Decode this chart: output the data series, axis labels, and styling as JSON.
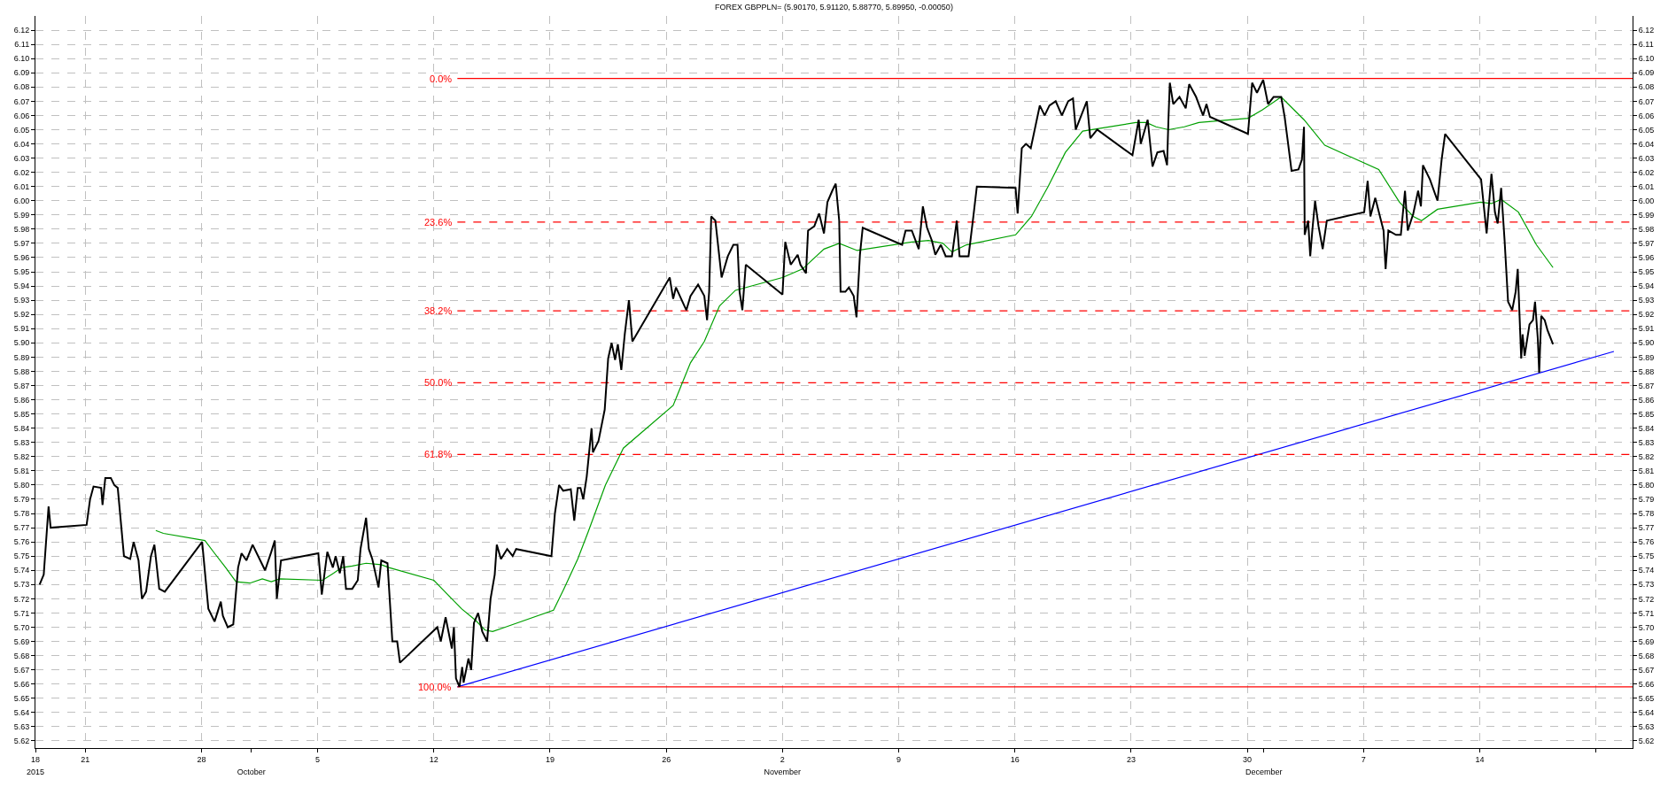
{
  "chart_data": {
    "type": "line",
    "title": "FOREX GBPPLN= (5.90170, 5.91120, 5.88770, 5.89950, -0.00050)",
    "xlim": [
      "2015-09-18",
      "2015-12-23T05:00"
    ],
    "xticks": [
      {
        "value": "2015-09-18",
        "label": "18"
      },
      {
        "value": "2015-09-21",
        "label": "21"
      },
      {
        "value": "2015-09-28",
        "label": "28"
      },
      {
        "value": "2015-10-05",
        "label": "5"
      },
      {
        "value": "2015-10-12",
        "label": "12"
      },
      {
        "value": "2015-10-19",
        "label": "19"
      },
      {
        "value": "2015-10-26",
        "label": "26"
      },
      {
        "value": "2015-11-02",
        "label": "2"
      },
      {
        "value": "2015-11-09",
        "label": "9"
      },
      {
        "value": "2015-11-16",
        "label": "16"
      },
      {
        "value": "2015-11-23",
        "label": "23"
      },
      {
        "value": "2015-11-30",
        "label": "30"
      },
      {
        "value": "2015-12-07",
        "label": "7"
      },
      {
        "value": "2015-12-14",
        "label": "14"
      },
      {
        "value": "2015-12-21",
        "label": null
      }
    ],
    "x2lim": [
      "2015-09-18",
      "2015-12-23T05:00"
    ],
    "x2ticks": [
      {
        "value": "2015-09-18",
        "label": "2015"
      },
      {
        "value": "2015-10-01",
        "label": "October"
      },
      {
        "value": "2015-11-02",
        "label": "November"
      },
      {
        "value": "2015-12-01",
        "label": "December"
      }
    ],
    "ylim": [
      5.615,
      6.13
    ],
    "yticks": [
      5.62,
      5.63,
      5.64,
      5.65,
      5.66,
      5.67,
      5.68,
      5.69,
      {
        "value": 5.7,
        "label": "5.70"
      },
      5.71,
      5.72,
      5.73,
      5.74,
      5.75,
      5.76,
      5.77,
      5.78,
      5.79,
      {
        "value": 5.8,
        "label": "5.80"
      },
      5.81,
      5.82,
      5.83,
      5.84,
      5.85,
      5.86,
      5.87,
      5.88,
      5.89,
      {
        "value": 5.9,
        "label": "5.90"
      },
      5.91,
      5.92,
      5.93,
      5.94,
      5.95,
      5.96,
      5.97,
      5.98,
      5.99,
      {
        "value": 6.0,
        "label": "6.00"
      },
      6.01,
      6.02,
      6.03,
      6.04,
      6.05,
      6.06,
      6.07,
      6.08,
      6.09,
      {
        "value": 6.1,
        "label": "6.10"
      },
      6.11,
      6.12
    ],
    "y2lim": [
      5.615,
      6.13
    ],
    "y2ticks": [
      5.62,
      5.63,
      5.64,
      5.65,
      5.66,
      5.67,
      5.68,
      5.69,
      {
        "value": 5.7,
        "label": "5.70"
      },
      5.71,
      5.72,
      5.73,
      5.74,
      5.75,
      5.76,
      5.77,
      5.78,
      5.79,
      {
        "value": 5.8,
        "label": "5.80"
      },
      5.81,
      5.82,
      5.83,
      5.84,
      5.85,
      5.86,
      5.87,
      5.88,
      5.89,
      {
        "value": 5.9,
        "label": "5.90"
      },
      5.91,
      5.92,
      5.93,
      5.94,
      5.95,
      5.96,
      5.97,
      5.98,
      5.99,
      {
        "value": 6.0,
        "label": "6.00"
      },
      6.01,
      6.02,
      6.03,
      6.04,
      6.05,
      6.06,
      6.07,
      6.08,
      6.09,
      {
        "value": 6.1,
        "label": "6.10"
      },
      6.11,
      6.12
    ],
    "grid": true,
    "legend": false,
    "series": [
      {
        "color": "#0000ff",
        "line_style": "solid",
        "x": [
          "2015-10-13T10:00",
          "2015-12-22T02:00"
        ],
        "values": [
          5.658,
          5.894
        ]
      },
      {
        "name": "0.0%",
        "color": "#ff0000",
        "line_style": "solid",
        "x": [
          "2015-10-13T10:00",
          "2015-12-23T05:00"
        ],
        "values": [
          6.086,
          6.086
        ]
      },
      {
        "name": "23.6%",
        "color": "#ff0000",
        "line_style": "dashed",
        "x": [
          "2015-10-13T10:00",
          "2015-12-23T05:00"
        ],
        "values": [
          5.985,
          5.985
        ]
      },
      {
        "name": "38.2%",
        "color": "#ff0000",
        "line_style": "dashed",
        "x": [
          "2015-10-13T10:00",
          "2015-12-23T05:00"
        ],
        "values": [
          5.9225,
          5.9225
        ]
      },
      {
        "name": "50.0%",
        "color": "#ff0000",
        "line_style": "dashed",
        "x": [
          "2015-10-13T10:00",
          "2015-12-23T05:00"
        ],
        "values": [
          5.872,
          5.872
        ]
      },
      {
        "name": "61.8%",
        "color": "#ff0000",
        "line_style": "dashed",
        "x": [
          "2015-10-13T10:00",
          "2015-12-23T05:00"
        ],
        "values": [
          5.8215,
          5.8215
        ]
      },
      {
        "name": "100.0%",
        "color": "#ff0000",
        "line_style": "solid",
        "x": [
          "2015-10-13T10:00",
          "2015-12-23T05:00"
        ],
        "values": [
          5.658,
          5.658
        ]
      },
      {
        "color": "#00a000",
        "line_style": "solid",
        "x": [
          "2015-09-25T06:00",
          "2015-09-25T17:00",
          "2015-09-28T05:00",
          "2015-09-28T19:00",
          "2015-09-29T11:00",
          "2015-09-30T02:00",
          "2015-09-30T22:00",
          "2015-10-01T16:00",
          "2015-10-02T05:00",
          "2015-10-02T17:00",
          "2015-10-05T07:00",
          "2015-10-05T23:00",
          "2015-10-06T11:00",
          "2015-10-07T02:00",
          "2015-10-07T22:00",
          "2015-10-08T20:00",
          "2015-10-09T07:00",
          "2015-10-12T00:00",
          "2015-10-12T20:00",
          "2015-10-13T16:00",
          "2015-10-14T12:00",
          "2015-10-15T02:00",
          "2015-10-15T13:00",
          "2015-10-16T07:00",
          "2015-10-19T05:00",
          "2015-10-19T20:00",
          "2015-10-20T16:00",
          "2015-10-21T07:00",
          "2015-10-22T08:00",
          "2015-10-23T10:00",
          "2015-10-26T10:00",
          "2015-10-27T11:00",
          "2015-10-28T07:00",
          "2015-10-29T05:00",
          "2015-10-30T04:00",
          "2015-11-02T00:00",
          "2015-11-03T05:00",
          "2015-11-04T12:00",
          "2015-11-05T10:00",
          "2015-11-06T12:00",
          "2015-11-09T19:00",
          "2015-11-10T19:00",
          "2015-11-11T16:00",
          "2015-11-12T05:00",
          "2015-11-13T02:00",
          "2015-11-16T01:00",
          "2015-11-17T00:00",
          "2015-11-18T00:00",
          "2015-11-19T01:00",
          "2015-11-20T02:00",
          "2015-11-23T07:00",
          "2015-11-23T22:00",
          "2015-11-24T12:00",
          "2015-11-25T06:00",
          "2015-11-26T05:00",
          "2015-11-27T02:00",
          "2015-11-30T01:00",
          "2015-11-30T22:00",
          "2015-12-02T01:00",
          "2015-12-03T10:00",
          "2015-12-04T16:00",
          "2015-12-07T22:00",
          "2015-12-09T04:00",
          "2015-12-10T00:00",
          "2015-12-10T12:00",
          "2015-12-11T11:00",
          "2015-12-14T01:00",
          "2015-12-14T17:00",
          "2015-12-15T07:00",
          "2015-12-16T08:00",
          "2015-12-17T10:00",
          "2015-12-18T10:00"
        ],
        "values": [
          5.768,
          5.766,
          5.761,
          5.752,
          5.742,
          5.732,
          5.731,
          5.734,
          5.732,
          5.734,
          5.733,
          5.738,
          5.742,
          5.743,
          5.745,
          5.744,
          5.742,
          5.733,
          5.723,
          5.713,
          5.705,
          5.698,
          5.697,
          5.7,
          5.712,
          5.727,
          5.748,
          5.767,
          5.8,
          5.826,
          5.856,
          5.886,
          5.901,
          5.926,
          5.937,
          5.946,
          5.952,
          5.966,
          5.97,
          5.965,
          5.971,
          5.972,
          5.97,
          5.964,
          5.969,
          5.976,
          5.989,
          6.01,
          6.034,
          6.049,
          6.055,
          6.055,
          6.052,
          6.05,
          6.052,
          6.055,
          6.058,
          6.064,
          6.073,
          6.057,
          6.039,
          6.022,
          5.999,
          5.989,
          5.986,
          5.994,
          5.999,
          5.998,
          6.001,
          5.992,
          5.969,
          5.953
        ]
      },
      {
        "color": "#000000",
        "line_style": "solid",
        "x": [
          "2015-09-18T06:00",
          "2015-09-18T12:00",
          "2015-09-18T19:00",
          "2015-09-18T22:00",
          "2015-09-21T02:00",
          "2015-09-21T07:00",
          "2015-09-21T12:00",
          "2015-09-21T23:00",
          "2015-09-22T01:00",
          "2015-09-22T05:00",
          "2015-09-22T13:00",
          "2015-09-22T18:00",
          "2015-09-22T23:00",
          "2015-09-23T08:00",
          "2015-09-23T17:00",
          "2015-09-23T22:00",
          "2015-09-24T05:00",
          "2015-09-24T10:00",
          "2015-09-24T16:00",
          "2015-09-24T23:00",
          "2015-09-25T04:00",
          "2015-09-25T11:00",
          "2015-09-25T19:00",
          "2015-09-28T01:00",
          "2015-09-28T10:00",
          "2015-09-28T19:00",
          "2015-09-29T04:00",
          "2015-09-29T07:00",
          "2015-09-29T14:00",
          "2015-09-29T22:00",
          "2015-09-30T05:00",
          "2015-09-30T10:00",
          "2015-09-30T17:00",
          "2015-10-01T02:00",
          "2015-10-01T10:00",
          "2015-10-01T20:00",
          "2015-10-02T05:00",
          "2015-10-02T10:00",
          "2015-10-02T13:00",
          "2015-10-02T19:00",
          "2015-10-05T01:00",
          "2015-10-05T06:00",
          "2015-10-05T14:00",
          "2015-10-05T22:00",
          "2015-10-06T02:00",
          "2015-10-06T08:00",
          "2015-10-06T13:00",
          "2015-10-06T17:00",
          "2015-10-07T02:00",
          "2015-10-07T10:00",
          "2015-10-07T14:00",
          "2015-10-07T22:00",
          "2015-10-08T02:00",
          "2015-10-08T07:00",
          "2015-10-08T16:00",
          "2015-10-08T20:00",
          "2015-10-09T05:00",
          "2015-10-09T12:00",
          "2015-10-09T19:00",
          "2015-10-09T23:00",
          "2015-10-12T05:00",
          "2015-10-12T10:00",
          "2015-10-12T17:00",
          "2015-10-13T02:00",
          "2015-10-13T05:00",
          "2015-10-13T08:00",
          "2015-10-13T13:00",
          "2015-10-13T17:00",
          "2015-10-13T19:00",
          "2015-10-14T02:00",
          "2015-10-14T06:00",
          "2015-10-14T10:00",
          "2015-10-14T16:00",
          "2015-10-14T22:00",
          "2015-10-15T05:00",
          "2015-10-15T10:00",
          "2015-10-15T16:00",
          "2015-10-15T19:00",
          "2015-10-16T01:00",
          "2015-10-16T10:00",
          "2015-10-16T18:00",
          "2015-10-16T23:00",
          "2015-10-19T02:00",
          "2015-10-19T07:00",
          "2015-10-19T13:00",
          "2015-10-19T19:00",
          "2015-10-20T06:00",
          "2015-10-20T11:00",
          "2015-10-20T16:00",
          "2015-10-20T20:00",
          "2015-10-21T00:00",
          "2015-10-21T05:00",
          "2015-10-21T12:00",
          "2015-10-21T14:00",
          "2015-10-21T22:00",
          "2015-10-22T07:00",
          "2015-10-22T12:00",
          "2015-10-22T17:00",
          "2015-10-22T22:00",
          "2015-10-23T02:00",
          "2015-10-23T07:00",
          "2015-10-23T12:00",
          "2015-10-23T18:00",
          "2015-10-23T23:00",
          "2015-10-26T05:00",
          "2015-10-26T10:00",
          "2015-10-26T14:00",
          "2015-10-27T05:00",
          "2015-10-27T11:00",
          "2015-10-27T22:00",
          "2015-10-28T07:00",
          "2015-10-28T11:00",
          "2015-10-28T14:00",
          "2015-10-28T17:00",
          "2015-10-28T23:00",
          "2015-10-29T08:00",
          "2015-10-29T17:00",
          "2015-10-30T01:00",
          "2015-10-30T07:00",
          "2015-10-30T10:00",
          "2015-10-30T14:00",
          "2015-10-30T19:00",
          "2015-11-02T00:00",
          "2015-11-02T04:00",
          "2015-11-02T12:00",
          "2015-11-02T22:00",
          "2015-11-03T02:00",
          "2015-11-03T10:00",
          "2015-11-03T13:00",
          "2015-11-03T22:00",
          "2015-11-04T05:00",
          "2015-11-04T12:00",
          "2015-11-04T17:00",
          "2015-11-05T00:00",
          "2015-11-05T05:00",
          "2015-11-05T10:00",
          "2015-11-05T12:00",
          "2015-11-05T19:00",
          "2015-11-06T00:00",
          "2015-11-06T07:00",
          "2015-11-06T11:00",
          "2015-11-06T16:00",
          "2015-11-06T20:00",
          "2015-11-09T05:00",
          "2015-11-09T10:00",
          "2015-11-09T19:00",
          "2015-11-10T05:00",
          "2015-11-10T11:00",
          "2015-11-10T17:00",
          "2015-11-11T00:00",
          "2015-11-11T05:00",
          "2015-11-11T13:00",
          "2015-11-11T20:00",
          "2015-11-12T05:00",
          "2015-11-12T12:00",
          "2015-11-12T16:00",
          "2015-11-13T05:00",
          "2015-11-13T12:00",
          "2015-11-13T17:00",
          "2015-11-16T01:00",
          "2015-11-16T04:00",
          "2015-11-16T10:00",
          "2015-11-16T16:00",
          "2015-11-16T23:00",
          "2015-11-17T12:00",
          "2015-11-17T19:00",
          "2015-11-18T02:00",
          "2015-11-18T11:00",
          "2015-11-18T20:00",
          "2015-11-19T05:00",
          "2015-11-19T12:00",
          "2015-11-19T16:00",
          "2015-11-20T00:00",
          "2015-11-20T08:00",
          "2015-11-20T13:00",
          "2015-11-20T23:00",
          "2015-11-23T02:00",
          "2015-11-23T11:00",
          "2015-11-23T14:00",
          "2015-11-24T00:00",
          "2015-11-24T07:00",
          "2015-11-24T14:00",
          "2015-11-24T23:00",
          "2015-11-25T04:00",
          "2015-11-25T06:00",
          "2015-11-25T08:00",
          "2015-11-25T13:00",
          "2015-11-25T22:00",
          "2015-11-26T07:00",
          "2015-11-26T12:00",
          "2015-11-26T22:00",
          "2015-11-27T08:00",
          "2015-11-27T13:00",
          "2015-11-27T18:00",
          "2015-11-30T01:00",
          "2015-11-30T07:00",
          "2015-11-30T14:00",
          "2015-11-30T23:00",
          "2015-12-01T06:00",
          "2015-12-01T14:00",
          "2015-12-02T01:00",
          "2015-12-02T06:00",
          "2015-12-02T10:00",
          "2015-12-02T16:00",
          "2015-12-03T02:00",
          "2015-12-03T07:00",
          "2015-12-03T10:00",
          "2015-12-03T11:00",
          "2015-12-03T16:00",
          "2015-12-03T19:00",
          "2015-12-03T22:00",
          "2015-12-04T02:00",
          "2015-12-04T07:00",
          "2015-12-04T13:00",
          "2015-12-04T19:00",
          "2015-12-07T01:00",
          "2015-12-07T06:00",
          "2015-12-07T10:00",
          "2015-12-07T17:00",
          "2015-12-08T05:00",
          "2015-12-08T08:00",
          "2015-12-08T12:00",
          "2015-12-08T23:00",
          "2015-12-09T06:00",
          "2015-12-09T12:00",
          "2015-12-09T16:00",
          "2015-12-10T00:00",
          "2015-12-10T07:00",
          "2015-12-10T11:00",
          "2015-12-10T14:00",
          "2015-12-11T00:00",
          "2015-12-11T11:00",
          "2015-12-11T17:00",
          "2015-12-11T22:00",
          "2015-12-14T02:00",
          "2015-12-14T10:00",
          "2015-12-14T17:00",
          "2015-12-14T22:00",
          "2015-12-15T02:00",
          "2015-12-15T07:00",
          "2015-12-15T12:00",
          "2015-12-15T17:00",
          "2015-12-15T23:00",
          "2015-12-16T04:00",
          "2015-12-16T07:00",
          "2015-12-16T12:00",
          "2015-12-16T14:00",
          "2015-12-16T17:00",
          "2015-12-17T00:00",
          "2015-12-17T05:00",
          "2015-12-17T08:00",
          "2015-12-17T12:00",
          "2015-12-17T14:00",
          "2015-12-17T17:00",
          "2015-12-17T22:00",
          "2015-12-18T02:00",
          "2015-12-18T10:00"
        ],
        "values": [
          5.73,
          5.737,
          5.785,
          5.77,
          5.772,
          5.79,
          5.799,
          5.798,
          5.786,
          5.805,
          5.805,
          5.8,
          5.798,
          5.75,
          5.748,
          5.76,
          5.747,
          5.72,
          5.725,
          5.75,
          5.758,
          5.727,
          5.725,
          5.76,
          5.713,
          5.704,
          5.718,
          5.708,
          5.7,
          5.702,
          5.742,
          5.752,
          5.747,
          5.758,
          5.75,
          5.74,
          5.753,
          5.761,
          5.72,
          5.747,
          5.752,
          5.723,
          5.753,
          5.742,
          5.75,
          5.738,
          5.75,
          5.727,
          5.727,
          5.733,
          5.755,
          5.777,
          5.755,
          5.748,
          5.728,
          5.747,
          5.745,
          5.69,
          5.69,
          5.675,
          5.7,
          5.69,
          5.707,
          5.685,
          5.7,
          5.664,
          5.658,
          5.672,
          5.661,
          5.678,
          5.67,
          5.703,
          5.71,
          5.697,
          5.69,
          5.72,
          5.737,
          5.758,
          5.748,
          5.755,
          5.75,
          5.755,
          5.75,
          5.78,
          5.8,
          5.796,
          5.797,
          5.775,
          5.798,
          5.798,
          5.79,
          5.806,
          5.84,
          5.823,
          5.831,
          5.853,
          5.889,
          5.9,
          5.888,
          5.899,
          5.881,
          5.906,
          5.93,
          5.901,
          5.946,
          5.931,
          5.939,
          5.923,
          5.933,
          5.941,
          5.933,
          5.916,
          5.936,
          5.989,
          5.986,
          5.946,
          5.961,
          5.969,
          5.969,
          5.936,
          5.923,
          5.955,
          5.934,
          5.971,
          5.955,
          5.962,
          5.955,
          5.949,
          5.979,
          5.982,
          5.991,
          5.977,
          5.999,
          6.007,
          6.012,
          5.986,
          5.936,
          5.936,
          5.939,
          5.933,
          5.918,
          5.962,
          5.981,
          5.969,
          5.979,
          5.979,
          5.966,
          5.996,
          5.981,
          5.972,
          5.962,
          5.969,
          5.961,
          5.961,
          5.986,
          5.961,
          5.961,
          5.989,
          6.01,
          6.009,
          5.991,
          6.037,
          6.04,
          6.037,
          6.067,
          6.06,
          6.067,
          6.07,
          6.06,
          6.07,
          6.072,
          6.05,
          6.06,
          6.07,
          6.044,
          6.05,
          6.032,
          6.057,
          6.04,
          6.057,
          6.024,
          6.034,
          6.035,
          6.025,
          6.057,
          6.083,
          6.068,
          6.073,
          6.065,
          6.082,
          6.073,
          6.06,
          6.068,
          6.059,
          6.047,
          6.083,
          6.076,
          6.085,
          6.068,
          6.073,
          6.073,
          6.059,
          6.044,
          6.021,
          6.022,
          6.029,
          6.052,
          5.976,
          5.986,
          5.961,
          5.979,
          6.0,
          5.982,
          5.966,
          5.986,
          5.992,
          6.014,
          5.989,
          6.002,
          5.979,
          5.952,
          5.979,
          5.976,
          5.976,
          6.007,
          5.979,
          5.991,
          6.007,
          5.996,
          6.025,
          6.015,
          6.0,
          6.029,
          6.047,
          6.015,
          5.977,
          6.019,
          5.992,
          5.984,
          6.009,
          5.972,
          5.929,
          5.923,
          5.936,
          5.952,
          5.889,
          5.906,
          5.891,
          5.913,
          5.916,
          5.929,
          5.903,
          5.879,
          5.919,
          5.916,
          5.909,
          5.899
        ]
      }
    ]
  }
}
